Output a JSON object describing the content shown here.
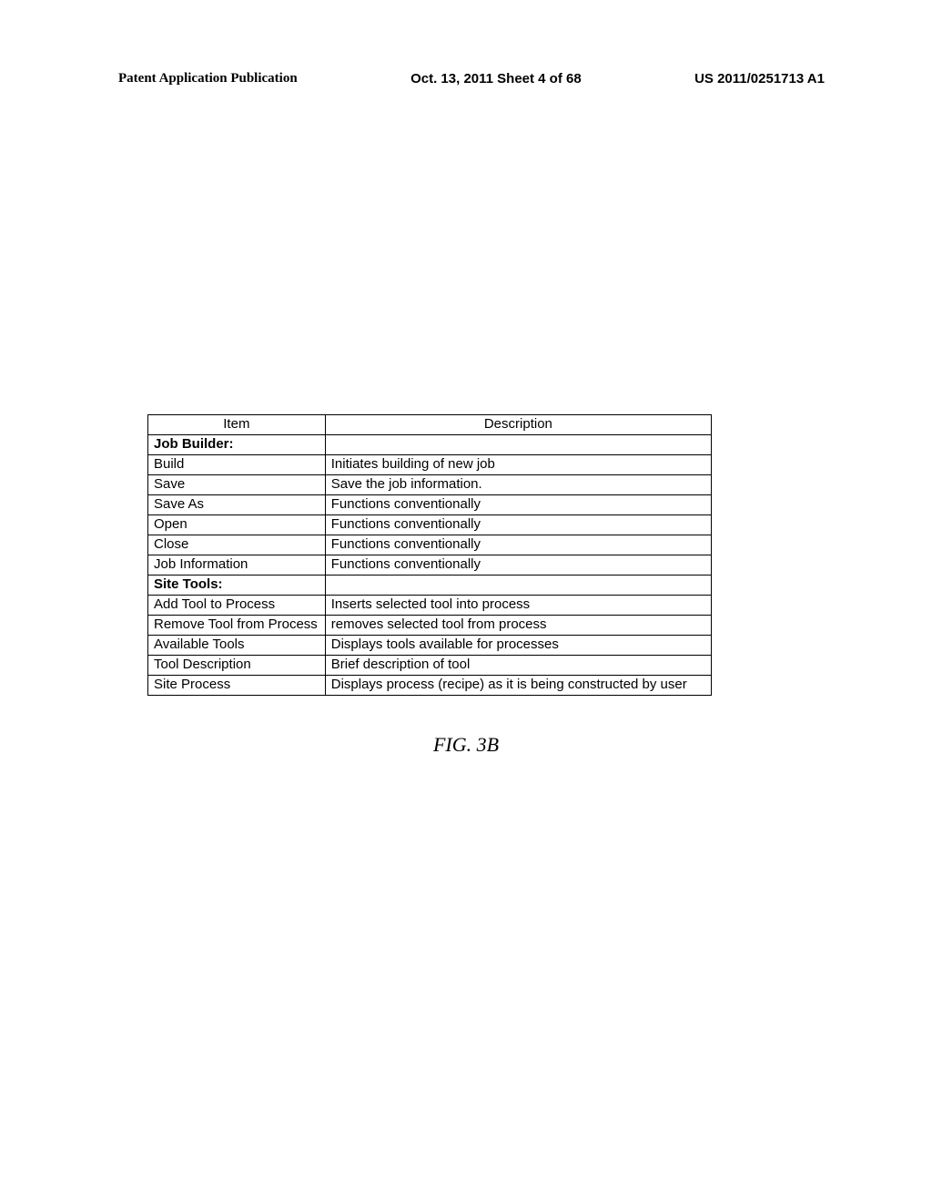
{
  "header": {
    "left": "Patent Application Publication",
    "center": "Oct. 13, 2011  Sheet 4 of 68",
    "right": "US 2011/0251713 A1"
  },
  "table": {
    "headers": {
      "item": "Item",
      "description": "Description"
    },
    "rows": [
      {
        "item": "Job Builder:",
        "description": "",
        "bold": true
      },
      {
        "item": "Build",
        "description": "Initiates building of new job"
      },
      {
        "item": "Save",
        "description": "Save the job information."
      },
      {
        "item": "Save As",
        "description": "Functions conventionally"
      },
      {
        "item": "Open",
        "description": "Functions conventionally"
      },
      {
        "item": "Close",
        "description": "Functions conventionally"
      },
      {
        "item": "Job Information",
        "description": "Functions conventionally"
      },
      {
        "item": "Site Tools:",
        "description": "",
        "bold": true
      },
      {
        "item": "Add Tool to Process",
        "description": "Inserts selected tool into process"
      },
      {
        "item": "Remove Tool from Process",
        "description": "removes selected tool from process"
      },
      {
        "item": "Available Tools",
        "description": "Displays tools available for processes"
      },
      {
        "item": "Tool Description",
        "description": "Brief description of tool"
      },
      {
        "item": "Site Process",
        "description": "Displays process (recipe) as it is being constructed by user"
      }
    ]
  },
  "caption": "FIG.  3B"
}
